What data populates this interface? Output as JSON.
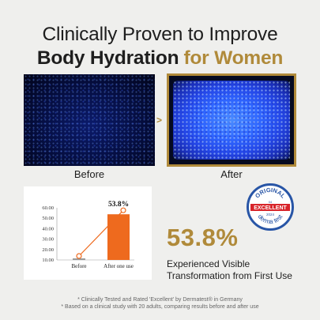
{
  "headline": {
    "line1": "Clinically Proven to Improve",
    "line2_dark": "Body Hydration",
    "line2_gold": "for Women"
  },
  "images": {
    "before_caption": "Before",
    "after_caption": "After",
    "arrow": ">"
  },
  "colors": {
    "gold": "#b08a3a",
    "background": "#efefed",
    "bar_before": "#9a9a9a",
    "bar_after": "#ee6a1e",
    "badge_blue": "#2855a6",
    "badge_red": "#d8242a"
  },
  "chart_data": {
    "type": "bar",
    "categories": [
      "Before",
      "After one use"
    ],
    "values": [
      11.5,
      53.8
    ],
    "data_labels": [
      "",
      "53.8%"
    ],
    "y_ticks": [
      "60.00",
      "50.00",
      "40.00",
      "30.00",
      "20.00",
      "10.00"
    ],
    "ylim": [
      10,
      60
    ],
    "overlay": "line connecting bar tops",
    "title": "",
    "xlabel": "",
    "ylabel": ""
  },
  "badge": {
    "top_text": "ORIGINAL",
    "year_top": "04",
    "rating": "EXCELLENT",
    "year": "2024",
    "bottom_text": "derma test"
  },
  "result": {
    "percent": "53.8%",
    "description": "Experienced Visible Transformation from First Use"
  },
  "footnotes": {
    "line1": "* Clinically Tested and Rated 'Excellent' by Dermatest® in Germany",
    "line2": "* Based on a clinical study with 20 adults, comparing results before and after use"
  }
}
